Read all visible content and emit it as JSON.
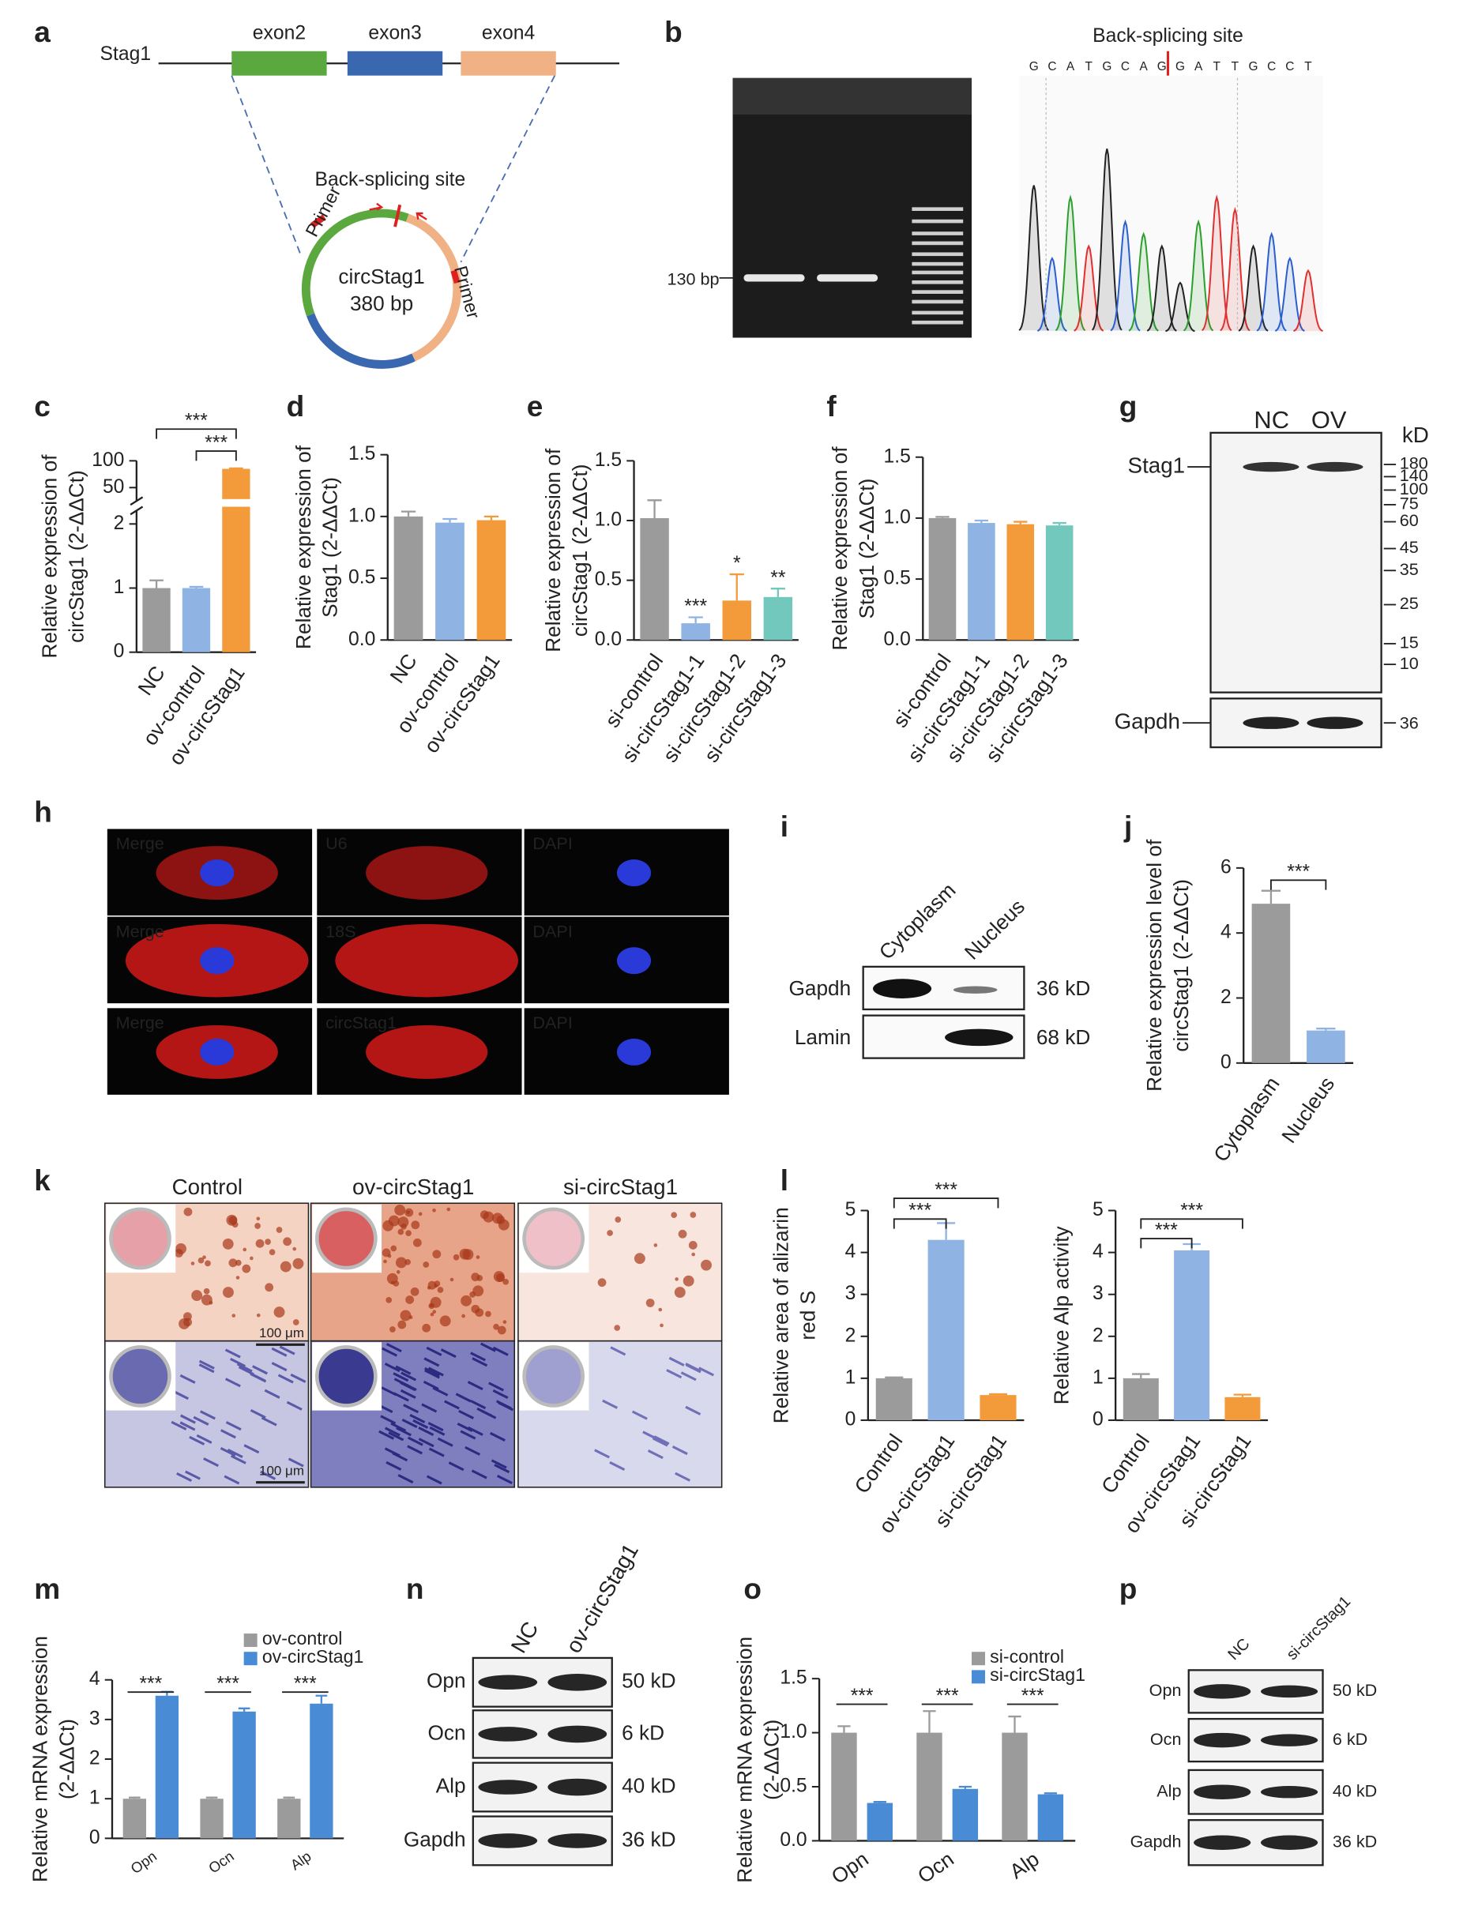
{
  "chart_data": [
    {
      "type": "bar",
      "categories": [
        "NC",
        "ov-control",
        "ov-circStag1"
      ],
      "values": [
        1.0,
        1.0,
        85
      ],
      "errors": [
        0.12,
        0.02,
        1
      ],
      "colors": [
        "#9b9b9b",
        "#8fb3e2",
        "#f39b3b"
      ],
      "ylabel": [
        "Relative expression of",
        "circStag1 (2-ΔΔCt)"
      ],
      "ylim": [
        0,
        100
      ],
      "yticks": [
        0,
        1,
        2,
        50,
        100
      ],
      "axis_break": [
        2,
        50
      ],
      "brackets": [
        "***",
        "***"
      ]
    },
    {
      "type": "bar",
      "categories": [
        "NC",
        "ov-control",
        "ov-circStag1"
      ],
      "values": [
        1.0,
        0.95,
        0.97
      ],
      "errors": [
        0.04,
        0.03,
        0.03
      ],
      "colors": [
        "#9b9b9b",
        "#8fb3e2",
        "#f39b3b"
      ],
      "ylabel": [
        "Relative expression of",
        "Stag1 (2-ΔΔCt)"
      ],
      "ylim": [
        0,
        1.5
      ],
      "yticks": [
        {
          "value": 0,
          "label": "0.0"
        },
        0.5,
        {
          "value": 1,
          "label": "1.0"
        },
        1.5
      ]
    },
    {
      "type": "bar",
      "categories": [
        "si-control",
        "si-circStag1-1",
        "si-circStag1-2",
        "si-circStag1-3"
      ],
      "values": [
        1.02,
        0.14,
        0.33,
        0.36
      ],
      "errors": [
        0.15,
        0.05,
        0.22,
        0.07
      ],
      "colors": [
        "#9b9b9b",
        "#8fb3e2",
        "#f39b3b",
        "#73c8bd"
      ],
      "significance": [
        null,
        "***",
        "*",
        "**"
      ],
      "ylabel": [
        "Relative expression of",
        "circStag1 (2-ΔΔCt)"
      ],
      "ylim": [
        0,
        1.5
      ],
      "yticks": [
        {
          "value": 0,
          "label": "0.0"
        },
        0.5,
        {
          "value": 1,
          "label": "1.0"
        },
        1.5
      ]
    },
    {
      "type": "bar",
      "categories": [
        "si-control",
        "si-circStag1-1",
        "si-circStag1-2",
        "si-circStag1-3"
      ],
      "values": [
        1.0,
        0.96,
        0.95,
        0.94
      ],
      "errors": [
        0.01,
        0.02,
        0.02,
        0.02
      ],
      "colors": [
        "#9b9b9b",
        "#8fb3e2",
        "#f39b3b",
        "#73c8bd"
      ],
      "ylabel": [
        "Relative expression of",
        "Stag1 (2-ΔΔCt)"
      ],
      "ylim": [
        0,
        1.5
      ],
      "yticks": [
        {
          "value": 0,
          "label": "0.0"
        },
        0.5,
        {
          "value": 1,
          "label": "1.0"
        },
        1.5
      ]
    },
    {
      "type": "bar",
      "categories": [
        "Cytoplasm",
        "Nucleus"
      ],
      "values": [
        4.9,
        1.0
      ],
      "errors": [
        0.4,
        0.06
      ],
      "colors": [
        "#9b9b9b",
        "#8fb3e2"
      ],
      "ylabel": [
        "Relative expression level of",
        "circStag1 (2-ΔΔCt)"
      ],
      "ylim": [
        0,
        6
      ],
      "yticks": [
        0,
        2,
        4,
        6
      ],
      "brackets": [
        "***"
      ]
    },
    {
      "type": "bar",
      "categories": [
        "Control",
        "ov-circStag1",
        "si-circStag1"
      ],
      "values": [
        1.0,
        4.3,
        0.6
      ],
      "errors": [
        0.02,
        0.4,
        0.02
      ],
      "colors": [
        "#9b9b9b",
        "#8fb3e2",
        "#f39b3b"
      ],
      "ylabel": [
        "Relative area of alizarin",
        "red S"
      ],
      "ylim": [
        0,
        5
      ],
      "yticks": [
        0,
        1,
        2,
        3,
        4,
        5
      ],
      "brackets": [
        "***",
        "***"
      ]
    },
    {
      "type": "bar",
      "categories": [
        "Control",
        "ov-circStag1",
        "si-circStag1"
      ],
      "values": [
        1.0,
        4.05,
        0.55
      ],
      "errors": [
        0.1,
        0.15,
        0.06
      ],
      "colors": [
        "#9b9b9b",
        "#8fb3e2",
        "#f39b3b"
      ],
      "ylabel": [
        "Relative Alp activity"
      ],
      "ylim": [
        0,
        5
      ],
      "yticks": [
        0,
        1,
        2,
        3,
        4,
        5
      ],
      "brackets": [
        "***",
        "***"
      ]
    },
    {
      "type": "grouped_bar",
      "categories": [
        "Opn",
        "Ocn",
        "Alp"
      ],
      "series": [
        {
          "name": "ov-control",
          "color": "#9b9b9b",
          "values": [
            1.0,
            1.0,
            1.0
          ],
          "errors": [
            0.03,
            0.03,
            0.03
          ]
        },
        {
          "name": "ov-circStag1",
          "color": "#4a8bd6",
          "values": [
            3.6,
            3.2,
            3.4
          ],
          "errors": [
            0.1,
            0.08,
            0.2
          ]
        }
      ],
      "significance": [
        "***",
        "***",
        "***"
      ],
      "ylabel": [
        "Relative mRNA expression",
        "(2-ΔΔCt)"
      ],
      "ylim": [
        0,
        4
      ],
      "yticks": [
        0,
        1,
        2,
        3,
        4
      ]
    },
    {
      "type": "grouped_bar",
      "categories": [
        "Opn",
        "Ocn",
        "Alp"
      ],
      "series": [
        {
          "name": "si-control",
          "color": "#9b9b9b",
          "values": [
            1.0,
            1.0,
            1.0
          ],
          "errors": [
            0.06,
            0.2,
            0.15
          ]
        },
        {
          "name": "si-circStag1",
          "color": "#4a8bd6",
          "values": [
            0.35,
            0.48,
            0.43
          ],
          "errors": [
            0.01,
            0.02,
            0.01
          ]
        }
      ],
      "significance": [
        "***",
        "***",
        "***"
      ],
      "ylabel": [
        "Relative mRNA expression",
        "(2-ΔΔCt)"
      ],
      "ylim": [
        0,
        1.5
      ],
      "yticks": [
        {
          "value": 0,
          "label": "0.0"
        },
        0.5,
        {
          "value": 1,
          "label": "1.0"
        },
        1.5
      ]
    }
  ],
  "panels": [
    "a",
    "b",
    "c",
    "d",
    "e",
    "f",
    "g",
    "h",
    "i",
    "j",
    "k",
    "l",
    "m",
    "n",
    "o",
    "p"
  ],
  "panel_a": {
    "gene": "Stag1",
    "exons": [
      "exon2",
      "exon3",
      "exon4"
    ],
    "site": "Back-splicing site",
    "primers": [
      "Primer",
      "Primer"
    ],
    "circ": "circStag1",
    "length": "380 bp"
  },
  "panel_b": {
    "site": "Back-splicing site",
    "marker": "130 bp",
    "sequence": [
      "G",
      "C",
      "A",
      "T",
      "G",
      "C",
      "A",
      "G",
      "G",
      "A",
      "T",
      "T",
      "G",
      "C",
      "C",
      "T"
    ]
  },
  "panel_g": {
    "lanes": [
      "NC",
      "OV"
    ],
    "unit": "kD",
    "proteins": [
      "Stag1",
      "Gapdh"
    ],
    "ladder": [
      "180",
      "140",
      "100",
      "75",
      "60",
      "45",
      "35",
      "25",
      "15",
      "10"
    ],
    "gapdh_size": "36"
  },
  "panel_h": {
    "rows": [
      [
        "Merge",
        "U6",
        "DAPI"
      ],
      [
        "Merge",
        "18S",
        "DAPI"
      ],
      [
        "Merge",
        "circStag1",
        "DAPI"
      ]
    ]
  },
  "panel_i": {
    "fractions": [
      "Cytoplasm",
      "Nucleus"
    ],
    "proteins": [
      "Gapdh",
      "Lamin"
    ],
    "sizes": [
      "36 kD",
      "68 kD"
    ]
  },
  "panel_k": {
    "groups": [
      "Control",
      "ov-circStag1",
      "si-circStag1"
    ],
    "scale_bars": [
      "100 μm",
      "100 μm"
    ]
  },
  "panel_n": {
    "lanes": [
      "NC",
      "ov-circStag1"
    ],
    "proteins": [
      "Opn",
      "Ocn",
      "Alp",
      "Gapdh"
    ],
    "sizes": [
      "50 kD",
      "6 kD",
      "40 kD",
      "36 kD"
    ]
  },
  "panel_p": {
    "lanes": [
      "NC",
      "si-circStag1"
    ],
    "proteins": [
      "Opn",
      "Ocn",
      "Alp",
      "Gapdh"
    ],
    "sizes": [
      "50 kD",
      "6 kD",
      "40 kD",
      "36 kD"
    ]
  }
}
